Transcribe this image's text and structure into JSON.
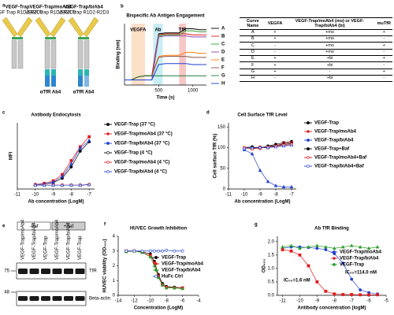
{
  "panel_a": {
    "panel": "a",
    "constructs": [
      {
        "name": "VEGF-Trap",
        "detail": "VEGF Trap R1D2-R2D3"
      },
      {
        "name": "VEGF-Trap/moAb4",
        "detail": "VEGF Trap R1D2-R2D3",
        "tfr": "αTfR Ab4"
      },
      {
        "name": "VEGF-Trap/biAb4",
        "detail": "VEGF Trap R1D2-R2D3",
        "tfr": "αTfR Ab4"
      }
    ]
  },
  "panel_b_table": {
    "header": [
      "Curve Name",
      "VEGFA",
      "VEGF-Trap/moAb4 (mo) or VEGF-Trap/biAb4 (bi)",
      "muTfR"
    ],
    "rows": [
      [
        "A",
        "+",
        "+mo",
        "+"
      ],
      [
        "B",
        "+",
        "+mo",
        "-"
      ],
      [
        "C",
        "-",
        "+mo",
        "+"
      ],
      [
        "D",
        "-",
        "+mo",
        "-"
      ],
      [
        "E",
        "+",
        "+bi",
        "+"
      ],
      [
        "F",
        "+",
        "+bi",
        "-"
      ],
      [
        "G",
        "+",
        "-",
        "+"
      ],
      [
        "H",
        "-",
        "+bi",
        "-"
      ]
    ]
  },
  "panel_e": {
    "panel": "e",
    "groups": [
      "-Baf",
      "+Baf"
    ],
    "lanes": [
      "VEGF-Trap/moAb4",
      "VEGF-Trap/biAb4",
      "VEGF-Trap",
      "VEGF-Trap/moAb4",
      "VEGF-Trap/biAb4",
      "VEGF-Trap"
    ],
    "mw": [
      "75",
      "48"
    ],
    "bands": [
      "TfR",
      "Beta-actin"
    ]
  },
  "chart_data": [
    {
      "type": "line",
      "panel": "b",
      "title": "Bispecific Ab Antigen Engagement",
      "x_label": "Time (s)",
      "y_label": "Binding (nm)",
      "x": [
        0,
        100,
        200,
        300,
        400,
        500,
        600,
        700,
        800,
        900,
        1000,
        1100,
        1200
      ],
      "xlim": [
        0,
        1200
      ],
      "xticks": [
        500,
        1000
      ],
      "ylim": [
        -0.5,
        5.5
      ],
      "regions": [
        {
          "label": "VEGFA",
          "range": [
            100,
            300
          ],
          "color": "#fde0c8"
        },
        {
          "label": "Ab",
          "range": [
            420,
            560
          ],
          "color": "#c8eef5"
        },
        {
          "label": "TfR",
          "range": [
            800,
            900
          ],
          "color": "#f7c6c6"
        }
      ],
      "series": [
        {
          "name": "A",
          "color": "#000000",
          "values": [
            0,
            0,
            0.3,
            0.4,
            0.4,
            4.5,
            4.6,
            4.6,
            4.6,
            5.0,
            5.0,
            4.9,
            4.9
          ]
        },
        {
          "name": "B",
          "color": "#e41a1c",
          "values": [
            0,
            0,
            0.3,
            0.4,
            0.4,
            4.4,
            4.5,
            4.5,
            4.5,
            4.5,
            4.4,
            4.4,
            4.4
          ]
        },
        {
          "name": "C",
          "color": "#2ca02c",
          "values": [
            0,
            0,
            0,
            0,
            0,
            4.3,
            4.4,
            4.4,
            4.4,
            4.8,
            4.8,
            4.7,
            4.7
          ]
        },
        {
          "name": "D",
          "color": "#8e44ad",
          "values": [
            0,
            0,
            0,
            0,
            0,
            4.2,
            4.3,
            4.3,
            4.3,
            4.3,
            4.2,
            4.2,
            4.2
          ]
        },
        {
          "name": "E",
          "color": "#ff7f0e",
          "values": [
            0,
            0,
            0.3,
            0.4,
            0.4,
            2.3,
            2.4,
            2.4,
            2.4,
            2.7,
            2.7,
            2.6,
            2.6
          ]
        },
        {
          "name": "F",
          "color": "#8c564b",
          "values": [
            0,
            0,
            0.3,
            0.4,
            0.4,
            2.2,
            2.3,
            2.3,
            2.3,
            2.3,
            2.2,
            2.2,
            2.2
          ]
        },
        {
          "name": "G",
          "color": "#1b7a3a",
          "values": [
            0,
            0,
            0.3,
            0.4,
            0.4,
            0.4,
            0.4,
            0.4,
            0.4,
            0.4,
            0.4,
            0.4,
            0.4
          ]
        },
        {
          "name": "H",
          "color": "#1f3fd0",
          "values": [
            0,
            0,
            0,
            0,
            0,
            1.5,
            1.6,
            1.6,
            1.6,
            1.6,
            1.5,
            1.5,
            1.5
          ]
        }
      ]
    },
    {
      "type": "line",
      "panel": "c",
      "title": "Antibody Endocytosis",
      "x_label": "Ab concentration (LogM)",
      "y_label": "MFI",
      "x": [
        -10,
        -9.5,
        -9,
        -8.5,
        -8,
        -7.5,
        -7
      ],
      "xlim": [
        -11,
        -6.7
      ],
      "xticks": [
        -11,
        -10,
        -9,
        -8,
        -7
      ],
      "ylim": [
        -5,
        100
      ],
      "markers": true,
      "series": [
        {
          "name": "VEGF-Trap (37 °C)",
          "color": "#000000",
          "marker": "circle",
          "filled": true,
          "values": [
            2,
            3,
            5,
            12,
            30,
            55,
            70
          ]
        },
        {
          "name": "VEGF-Trap/moAb4 (37 °C)",
          "color": "#e41a1c",
          "marker": "square",
          "filled": true,
          "values": [
            2,
            4,
            8,
            18,
            40,
            62,
            78
          ]
        },
        {
          "name": "VEGF-Trap/biAb4 (37 °C)",
          "color": "#1f3fd0",
          "marker": "triangle",
          "filled": true,
          "values": [
            2,
            3,
            6,
            15,
            35,
            60,
            72
          ]
        },
        {
          "name": "VEGF-Trap (4 °C)",
          "color": "#000000",
          "marker": "circle",
          "filled": false,
          "values": [
            1,
            1,
            1,
            1,
            1,
            1,
            2
          ]
        },
        {
          "name": "VEGF-Trap/moAb4 (4 °C)",
          "color": "#e41a1c",
          "marker": "square",
          "filled": false,
          "values": [
            1,
            1,
            1,
            1,
            1,
            1,
            2
          ]
        },
        {
          "name": "VEGF-Trap/biAb4 (4 °C)",
          "color": "#1f3fd0",
          "marker": "triangle",
          "filled": false,
          "values": [
            1,
            1,
            1,
            1,
            1,
            1,
            2
          ]
        }
      ]
    },
    {
      "type": "line",
      "panel": "d",
      "title": "Cell Surface TfR Level",
      "x_label": "Ab concentration (LogM)",
      "y_label": "Cell surface TfR (%)",
      "x": [
        -10,
        -9.5,
        -9,
        -8.5,
        -8,
        -7.5,
        -7
      ],
      "xlim": [
        -11,
        -6.7
      ],
      "xticks": [
        -11,
        -10,
        -9,
        -8,
        -7
      ],
      "ylim": [
        0,
        160
      ],
      "yticks": [
        0,
        50,
        100,
        150
      ],
      "markers": true,
      "series": [
        {
          "name": "VEGF-Trap",
          "color": "#000000",
          "marker": "circle",
          "filled": true,
          "values": [
            100,
            102,
            98,
            104,
            108,
            112,
            115
          ]
        },
        {
          "name": "VEGF-Trap/moAb4",
          "color": "#e41a1c",
          "marker": "square",
          "filled": true,
          "values": [
            100,
            98,
            101,
            100,
            105,
            110,
            112
          ]
        },
        {
          "name": "VEGF-Trap/biAb4",
          "color": "#1f3fd0",
          "marker": "triangle",
          "filled": true,
          "values": [
            95,
            85,
            45,
            18,
            8,
            5,
            5
          ]
        },
        {
          "name": "VEGF-Trap+Baf",
          "color": "#000000",
          "marker": "circle",
          "filled": true,
          "values": [
            100,
            99,
            100,
            103,
            105,
            108,
            110
          ]
        },
        {
          "name": "VEGF-Trap/moAb4+Baf",
          "color": "#e41a1c",
          "marker": "square",
          "filled": false,
          "values": [
            100,
            97,
            99,
            101,
            103,
            106,
            108
          ]
        },
        {
          "name": "VEGF-Trap/biAb4+Baf",
          "color": "#1f3fd0",
          "marker": "triangle",
          "filled": false,
          "values": [
            98,
            100,
            101,
            100,
            102,
            104,
            106
          ]
        }
      ]
    },
    {
      "type": "line",
      "panel": "f",
      "title": "HUVEC Growth Inhibition",
      "x_label": "Concentration (LogM)",
      "y_label": "HUVEC viability (OD₄₅₀)",
      "x": [
        -13,
        -12,
        -11,
        -10,
        -9.5,
        -9,
        -8.5,
        -8,
        -7,
        -6
      ],
      "xlim": [
        -14,
        -4
      ],
      "xticks": [
        -14,
        -12,
        -10,
        -8,
        -6,
        -4
      ],
      "ylim": [
        0,
        4
      ],
      "yticks": [
        0,
        1,
        2,
        3,
        4
      ],
      "markers": true,
      "series": [
        {
          "name": "VEGF-Trap",
          "color": "#000000",
          "marker": "circle",
          "filled": true,
          "values": [
            3.0,
            3.0,
            2.95,
            2.8,
            2.3,
            1.4,
            0.8,
            0.6,
            0.55,
            0.5
          ]
        },
        {
          "name": "VEGF-Trap/moAb4",
          "color": "#e41a1c",
          "marker": "square",
          "filled": true,
          "values": [
            3.0,
            3.0,
            2.9,
            2.7,
            2.2,
            1.3,
            0.7,
            0.55,
            0.5,
            0.5
          ]
        },
        {
          "name": "VEGF-Trap/biAb4",
          "color": "#2ca02c",
          "marker": "triangle",
          "filled": true,
          "values": [
            2.95,
            3.0,
            2.9,
            2.6,
            2.0,
            1.2,
            0.7,
            0.5,
            0.5,
            0.45
          ]
        },
        {
          "name": "HuFc Ctrl",
          "color": "#1f3fd0",
          "marker": "circle",
          "filled": false,
          "values": [
            3.0,
            3.0,
            3.0,
            3.0,
            3.0,
            3.0,
            3.0,
            3.05,
            3.0,
            3.0
          ]
        }
      ]
    },
    {
      "type": "line",
      "panel": "g",
      "title": "Ab TfR Binding",
      "x_label": "Antibody concentration (logM)",
      "y_label": "OD₄₅₀",
      "x": [
        -11,
        -10.5,
        -10,
        -9.5,
        -9,
        -8.5,
        -8,
        -7.5,
        -7,
        -6.5,
        -6,
        -5.5
      ],
      "xlim": [
        -11.3,
        -5
      ],
      "xticks": [
        -11,
        -10,
        -9,
        -8,
        -7,
        -6,
        -5
      ],
      "ylim": [
        0,
        2.2
      ],
      "yticks": [
        {
          "value": 0,
          "label": "0.0"
        },
        {
          "value": 0.5,
          "label": "0.5"
        },
        {
          "value": 1,
          "label": "1.0"
        },
        {
          "value": 1.5,
          "label": "1.5"
        },
        {
          "value": 2,
          "label": "2.0"
        }
      ],
      "markers": true,
      "annotations": [
        {
          "text": "IC₅₀=1.6 nM",
          "color": "#e41a1c"
        },
        {
          "text": "IC₅₀=114.0 nM",
          "color": "#1f3fd0"
        }
      ],
      "series": [
        {
          "name": "VEGF-Trap/moAb4",
          "color": "#1f3fd0",
          "marker": "circle",
          "filled": true,
          "values": [
            1.75,
            1.8,
            1.8,
            1.78,
            1.75,
            1.7,
            1.55,
            1.2,
            0.6,
            0.2,
            0.1,
            0.05
          ]
        },
        {
          "name": "VEGF-Trap/biAb4",
          "color": "#e41a1c",
          "marker": "square",
          "filled": true,
          "values": [
            1.7,
            1.65,
            1.5,
            1.1,
            0.5,
            0.15,
            0.05,
            0.03,
            0.03,
            0.02,
            0.02,
            0.02
          ]
        },
        {
          "name": "VEGF-Trap",
          "color": "#2ca02c",
          "marker": "triangle",
          "filled": true,
          "values": [
            1.8,
            1.85,
            1.75,
            1.8,
            1.85,
            1.8,
            1.75,
            1.8,
            1.85,
            1.8,
            1.75,
            1.8
          ]
        }
      ]
    }
  ]
}
